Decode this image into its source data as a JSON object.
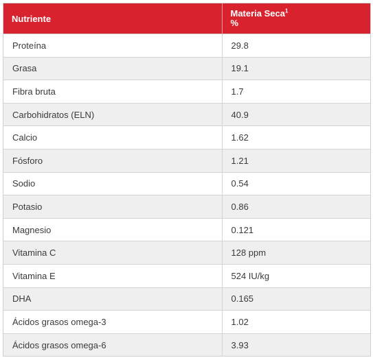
{
  "table": {
    "headers": {
      "nutrient": "Nutriente",
      "dry_matter_line1": "Materia Seca",
      "dry_matter_sup": "1",
      "dry_matter_line2": "%"
    },
    "rows": [
      {
        "name": "Proteína",
        "value": "29.8"
      },
      {
        "name": "Grasa",
        "value": "19.1"
      },
      {
        "name": "Fibra bruta",
        "value": "1.7"
      },
      {
        "name": "Carbohidratos (ELN)",
        "value": "40.9"
      },
      {
        "name": "Calcio",
        "value": "1.62"
      },
      {
        "name": "Fósforo",
        "value": "1.21"
      },
      {
        "name": "Sodio",
        "value": "0.54"
      },
      {
        "name": "Potasio",
        "value": "0.86"
      },
      {
        "name": "Magnesio",
        "value": "0.121"
      },
      {
        "name": "Vitamina C",
        "value": "128 ppm"
      },
      {
        "name": "Vitamina E",
        "value": "524 IU/kg"
      },
      {
        "name": "DHA",
        "value": "0.165"
      },
      {
        "name": "Ácidos grasos omega-3",
        "value": "1.02"
      },
      {
        "name": "Ácidos grasos omega-6",
        "value": "3.93"
      }
    ]
  },
  "colors": {
    "header_bg": "#d8232f",
    "header_text": "#ffffff",
    "row_alt_bg": "#efefef"
  }
}
